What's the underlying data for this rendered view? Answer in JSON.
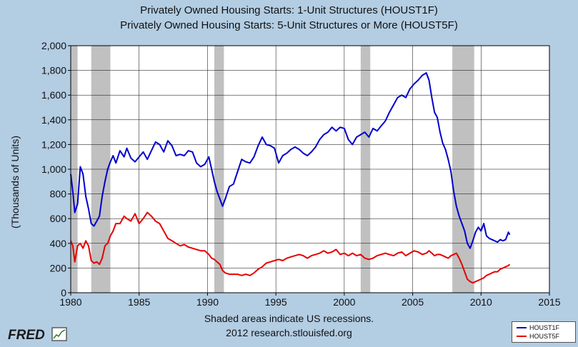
{
  "chart_data": {
    "type": "line",
    "title": [
      "Privately Owned Housing Starts: 1-Unit Structures (HOUST1F)",
      "Privately Owned Housing Starts: 5-Unit Structures or More (HOUST5F)"
    ],
    "ylabel": "(Thousands of Units)",
    "xlabel": "",
    "xlim": [
      1980,
      2015
    ],
    "ylim": [
      0,
      2000
    ],
    "x_ticks": [
      1980,
      1985,
      1990,
      1995,
      2000,
      2005,
      2010,
      2015
    ],
    "x_tick_labels": [
      "1980",
      "1985",
      "1990",
      "1995",
      "2000",
      "2005",
      "2010",
      "2015"
    ],
    "y_ticks": [
      0,
      200,
      400,
      600,
      800,
      1000,
      1200,
      1400,
      1600,
      1800,
      2000
    ],
    "y_tick_labels": [
      "0",
      "200",
      "400",
      "600",
      "800",
      "1,000",
      "1,200",
      "1,400",
      "1,600",
      "1,800",
      "2,000"
    ],
    "grid": true,
    "legend_position": "bottom-right",
    "recessions": [
      [
        1980.0,
        1980.5
      ],
      [
        1981.5,
        1982.9
      ],
      [
        1990.5,
        1991.2
      ],
      [
        2001.2,
        2001.9
      ],
      [
        2007.9,
        2009.5
      ]
    ],
    "series": [
      {
        "name": "HOUST1F",
        "color": "#0000cc",
        "x": [
          1980.0,
          1980.15,
          1980.3,
          1980.5,
          1980.7,
          1980.9,
          1981.1,
          1981.3,
          1981.5,
          1981.7,
          1981.9,
          1982.1,
          1982.3,
          1982.5,
          1982.7,
          1982.9,
          1983.1,
          1983.3,
          1983.6,
          1983.9,
          1984.1,
          1984.4,
          1984.7,
          1985.0,
          1985.3,
          1985.6,
          1985.9,
          1986.2,
          1986.5,
          1986.8,
          1987.1,
          1987.4,
          1987.7,
          1988.0,
          1988.3,
          1988.6,
          1988.9,
          1989.2,
          1989.5,
          1989.8,
          1990.1,
          1990.3,
          1990.5,
          1990.7,
          1990.9,
          1991.1,
          1991.3,
          1991.6,
          1991.9,
          1992.2,
          1992.5,
          1992.8,
          1993.1,
          1993.4,
          1993.7,
          1994.0,
          1994.3,
          1994.6,
          1994.9,
          1995.2,
          1995.5,
          1995.8,
          1996.1,
          1996.4,
          1996.7,
          1997.0,
          1997.3,
          1997.6,
          1997.9,
          1998.2,
          1998.5,
          1998.8,
          1999.1,
          1999.4,
          1999.7,
          2000.0,
          2000.3,
          2000.6,
          2000.9,
          2001.2,
          2001.5,
          2001.8,
          2002.1,
          2002.4,
          2002.7,
          2003.0,
          2003.3,
          2003.6,
          2003.9,
          2004.2,
          2004.5,
          2004.8,
          2005.1,
          2005.4,
          2005.7,
          2006.0,
          2006.2,
          2006.4,
          2006.6,
          2006.8,
          2007.0,
          2007.2,
          2007.4,
          2007.6,
          2007.8,
          2008.0,
          2008.2,
          2008.4,
          2008.6,
          2008.8,
          2009.0,
          2009.2,
          2009.4,
          2009.6,
          2009.8,
          2010.0,
          2010.2,
          2010.4,
          2010.6,
          2010.8,
          2011.0,
          2011.2,
          2011.4,
          2011.6,
          2011.8,
          2012.0,
          2012.1
        ],
        "values": [
          960,
          820,
          650,
          720,
          1020,
          960,
          780,
          680,
          560,
          540,
          580,
          620,
          780,
          900,
          1000,
          1060,
          1110,
          1050,
          1150,
          1100,
          1170,
          1090,
          1060,
          1100,
          1140,
          1080,
          1150,
          1220,
          1200,
          1140,
          1230,
          1190,
          1110,
          1120,
          1110,
          1150,
          1140,
          1050,
          1020,
          1040,
          1100,
          1000,
          900,
          820,
          760,
          700,
          760,
          860,
          880,
          980,
          1080,
          1060,
          1050,
          1100,
          1190,
          1260,
          1200,
          1190,
          1170,
          1050,
          1110,
          1130,
          1160,
          1180,
          1160,
          1130,
          1110,
          1140,
          1180,
          1240,
          1280,
          1300,
          1340,
          1310,
          1340,
          1330,
          1240,
          1200,
          1260,
          1280,
          1300,
          1260,
          1330,
          1310,
          1350,
          1390,
          1460,
          1520,
          1580,
          1600,
          1580,
          1650,
          1690,
          1720,
          1760,
          1780,
          1720,
          1580,
          1460,
          1420,
          1300,
          1210,
          1160,
          1080,
          980,
          820,
          700,
          620,
          560,
          500,
          400,
          360,
          420,
          490,
          530,
          500,
          560,
          460,
          440,
          430,
          420,
          410,
          430,
          420,
          430,
          490,
          470
        ]
      },
      {
        "name": "HOUST5F",
        "color": "#e60000",
        "x": [
          1980.0,
          1980.15,
          1980.3,
          1980.5,
          1980.7,
          1980.9,
          1981.1,
          1981.3,
          1981.5,
          1981.7,
          1981.9,
          1982.1,
          1982.3,
          1982.5,
          1982.7,
          1982.9,
          1983.1,
          1983.3,
          1983.6,
          1983.9,
          1984.1,
          1984.4,
          1984.7,
          1985.0,
          1985.3,
          1985.6,
          1985.9,
          1986.2,
          1986.5,
          1986.8,
          1987.1,
          1987.4,
          1987.7,
          1988.0,
          1988.3,
          1988.6,
          1988.9,
          1989.2,
          1989.5,
          1989.8,
          1990.1,
          1990.3,
          1990.5,
          1990.7,
          1990.9,
          1991.1,
          1991.3,
          1991.6,
          1991.9,
          1992.2,
          1992.5,
          1992.8,
          1993.1,
          1993.4,
          1993.7,
          1994.0,
          1994.3,
          1994.6,
          1994.9,
          1995.2,
          1995.5,
          1995.8,
          1996.1,
          1996.4,
          1996.7,
          1997.0,
          1997.3,
          1997.6,
          1997.9,
          1998.2,
          1998.5,
          1998.8,
          1999.1,
          1999.4,
          1999.7,
          2000.0,
          2000.3,
          2000.6,
          2000.9,
          2001.2,
          2001.5,
          2001.8,
          2002.1,
          2002.4,
          2002.7,
          2003.0,
          2003.3,
          2003.6,
          2003.9,
          2004.2,
          2004.5,
          2004.8,
          2005.1,
          2005.4,
          2005.7,
          2006.0,
          2006.2,
          2006.4,
          2006.6,
          2006.8,
          2007.0,
          2007.2,
          2007.4,
          2007.6,
          2007.8,
          2008.0,
          2008.2,
          2008.4,
          2008.6,
          2008.8,
          2009.0,
          2009.2,
          2009.4,
          2009.6,
          2009.8,
          2010.0,
          2010.2,
          2010.4,
          2010.6,
          2010.8,
          2011.0,
          2011.2,
          2011.4,
          2011.6,
          2011.8,
          2012.0,
          2012.1
        ],
        "values": [
          420,
          380,
          250,
          380,
          400,
          360,
          420,
          380,
          260,
          240,
          250,
          230,
          280,
          380,
          400,
          460,
          500,
          560,
          560,
          620,
          600,
          580,
          640,
          560,
          600,
          650,
          620,
          580,
          560,
          500,
          440,
          420,
          400,
          380,
          390,
          370,
          360,
          350,
          340,
          340,
          310,
          280,
          270,
          250,
          230,
          180,
          160,
          150,
          150,
          150,
          140,
          150,
          140,
          160,
          190,
          210,
          240,
          250,
          260,
          270,
          260,
          280,
          290,
          300,
          310,
          300,
          280,
          300,
          310,
          320,
          340,
          320,
          330,
          350,
          310,
          320,
          300,
          320,
          300,
          310,
          280,
          270,
          280,
          300,
          310,
          320,
          310,
          300,
          320,
          330,
          300,
          320,
          340,
          330,
          310,
          320,
          340,
          320,
          300,
          310,
          310,
          300,
          290,
          280,
          300,
          310,
          320,
          280,
          230,
          170,
          110,
          90,
          80,
          90,
          100,
          110,
          120,
          140,
          150,
          160,
          170,
          170,
          190,
          200,
          210,
          220,
          230
        ]
      }
    ]
  },
  "footer": {
    "note": "Shaded areas indicate US recessions.",
    "credit": "2012 research.stlouisfed.org",
    "logo_text": "FRED"
  },
  "colors": {
    "background": "#b3cde3",
    "plot_area": "#ffffff",
    "recession": "#c0c0c0"
  }
}
